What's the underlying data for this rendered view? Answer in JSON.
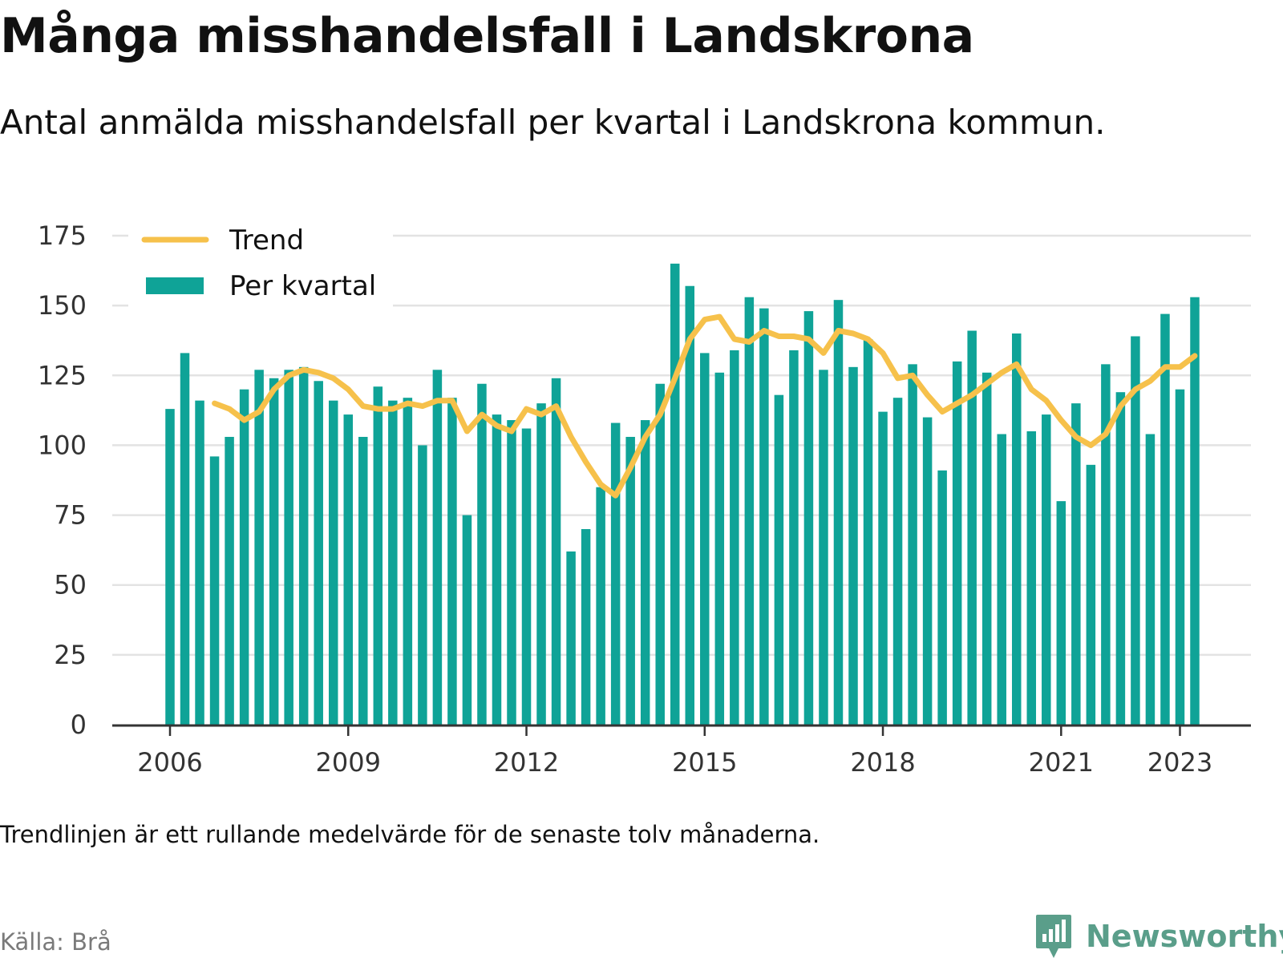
{
  "title": "Många misshandelsfall i Landskrona",
  "subtitle": "Antal anmälda misshandelsfall per kvartal i Landskrona kommun.",
  "footnote": "Trendlinjen är ett rullande medelvärde för de senaste tolv månaderna.",
  "source": "Källa: Brå",
  "brand": "Newsworthy",
  "colors": {
    "bars": "#0fa397",
    "trend": "#f6c14b",
    "grid": "#e3e3e3",
    "axis": "#333333",
    "brand": "#5a9e8a"
  },
  "chart_data": {
    "type": "bar",
    "x_start": "2006-Q1",
    "x_labels": [
      "2006",
      "2009",
      "2012",
      "2015",
      "2018",
      "2021",
      "2023"
    ],
    "y_ticks": [
      "0",
      "25",
      "50",
      "75",
      "100",
      "125",
      "150",
      "175"
    ],
    "ylim": [
      0,
      175
    ],
    "grid": true,
    "legend": {
      "position": "top-left",
      "entries": [
        "Trend",
        "Per kvartal"
      ]
    },
    "series": [
      {
        "name": "Per kvartal",
        "type": "bar",
        "values": [
          113,
          133,
          116,
          96,
          103,
          120,
          127,
          124,
          127,
          128,
          123,
          116,
          111,
          103,
          121,
          116,
          117,
          100,
          127,
          117,
          75,
          122,
          111,
          109,
          106,
          115,
          124,
          62,
          70,
          85,
          108,
          103,
          109,
          122,
          165,
          157,
          133,
          126,
          134,
          153,
          149,
          118,
          134,
          148,
          127,
          152,
          128,
          138,
          112,
          117,
          129,
          110,
          91,
          130,
          141,
          126,
          104,
          140,
          105,
          111,
          80,
          115,
          93,
          129,
          119,
          139,
          104,
          147,
          120,
          153
        ]
      },
      {
        "name": "Trend",
        "type": "line",
        "values": [
          null,
          null,
          null,
          115,
          113,
          109,
          112,
          120,
          125,
          127,
          126,
          124,
          120,
          114,
          113,
          113,
          115,
          114,
          116,
          116,
          105,
          111,
          107,
          105,
          113,
          111,
          114,
          103,
          94,
          86,
          82,
          92,
          103,
          111,
          124,
          138,
          145,
          146,
          138,
          137,
          141,
          139,
          139,
          138,
          133,
          141,
          140,
          138,
          133,
          124,
          125,
          118,
          112,
          115,
          118,
          122,
          126,
          129,
          120,
          116,
          109,
          103,
          100,
          104,
          114,
          120,
          123,
          128,
          128,
          132
        ]
      }
    ]
  }
}
